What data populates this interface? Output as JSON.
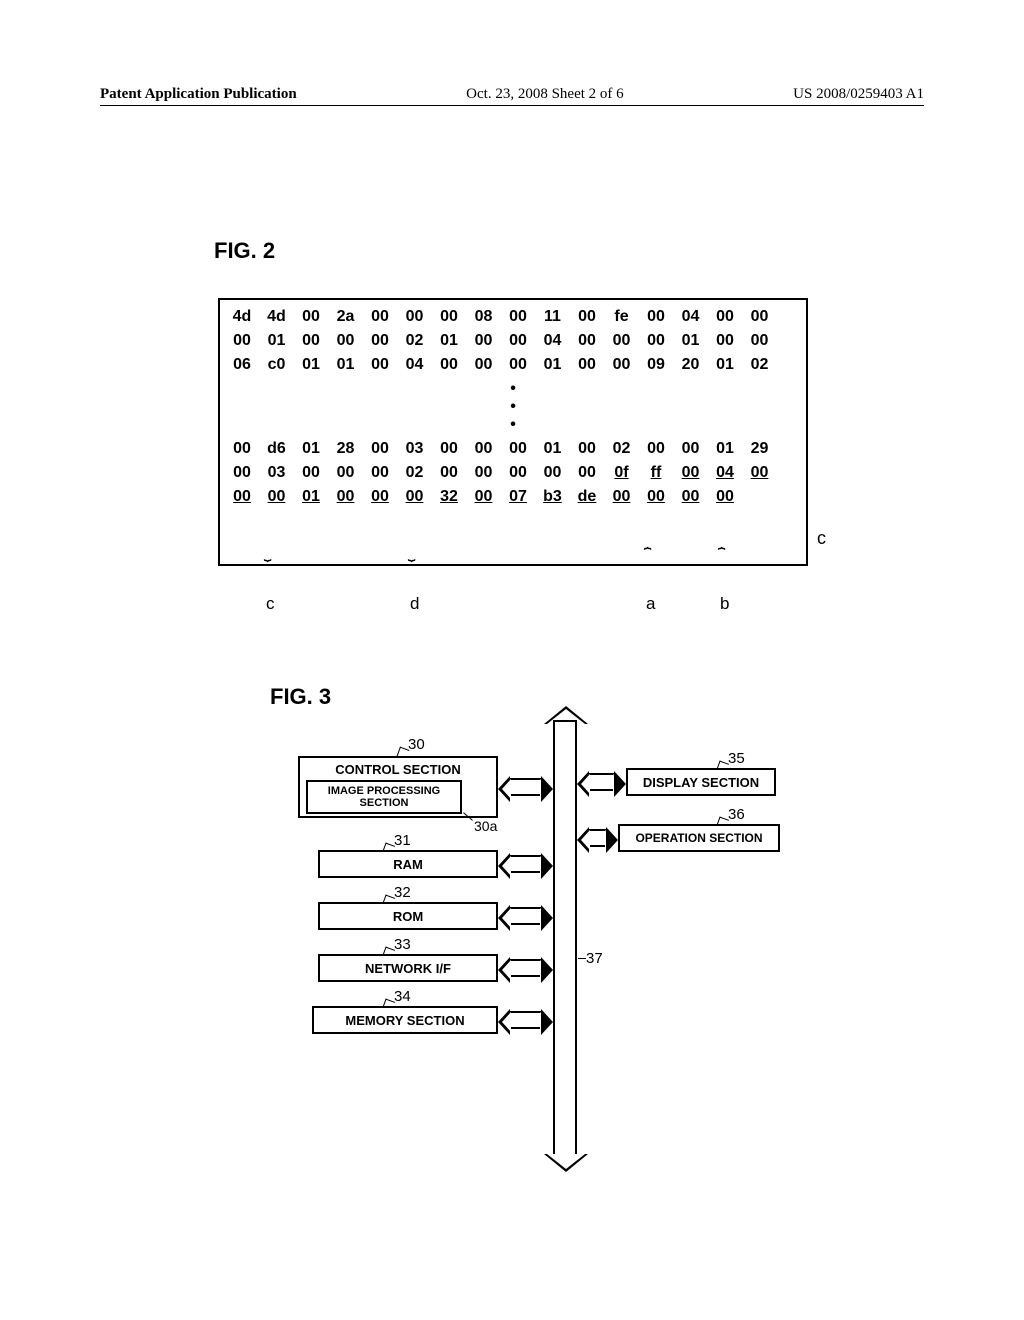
{
  "header": {
    "left": "Patent Application Publication",
    "mid": "Oct. 23, 2008  Sheet 2 of 6",
    "right": "US 2008/0259403 A1"
  },
  "fig2": {
    "label": "FIG. 2",
    "rows_top": [
      [
        "4d",
        "4d",
        "00",
        "2a",
        "00",
        "00",
        "00",
        "08",
        "00",
        "11",
        "00",
        "fe",
        "00",
        "04",
        "00",
        "00"
      ],
      [
        "00",
        "01",
        "00",
        "00",
        "00",
        "02",
        "01",
        "00",
        "00",
        "04",
        "00",
        "00",
        "00",
        "01",
        "00",
        "00"
      ],
      [
        "06",
        "c0",
        "01",
        "01",
        "00",
        "04",
        "00",
        "00",
        "00",
        "01",
        "00",
        "00",
        "09",
        "20",
        "01",
        "02"
      ]
    ],
    "rows_bottom": [
      [
        "00",
        "d6",
        "01",
        "28",
        "00",
        "03",
        "00",
        "00",
        "00",
        "01",
        "00",
        "02",
        "00",
        "00",
        "01",
        "29"
      ],
      [
        "00",
        "03",
        "00",
        "00",
        "00",
        "02",
        "00",
        "00",
        "00",
        "00",
        "00",
        "0f",
        "ff",
        "00",
        "04",
        "00"
      ],
      [
        "00",
        "00",
        "01",
        "00",
        "00",
        "00",
        "32",
        "00",
        "07",
        "b3",
        "de",
        "00",
        "00",
        "00",
        "00"
      ]
    ],
    "underline_bottom_row1_from": 11,
    "underline_bottom_row2_all": true,
    "annotations": {
      "c1": "c",
      "d": "d",
      "a": "a",
      "b": "b",
      "c2": "c"
    }
  },
  "fig3": {
    "label": "FIG. 3",
    "bus_ref": "37",
    "left_blocks": [
      {
        "ref": "30",
        "label": "CONTROL SECTION",
        "sub_ref": "30a",
        "sub_label": "IMAGE PROCESSING SECTION"
      },
      {
        "ref": "31",
        "label": "RAM"
      },
      {
        "ref": "32",
        "label": "ROM"
      },
      {
        "ref": "33",
        "label": "NETWORK I/F"
      },
      {
        "ref": "34",
        "label": "MEMORY SECTION"
      }
    ],
    "right_blocks": [
      {
        "ref": "35",
        "label": "DISPLAY SECTION"
      },
      {
        "ref": "36",
        "label": "OPERATION SECTION"
      }
    ]
  }
}
